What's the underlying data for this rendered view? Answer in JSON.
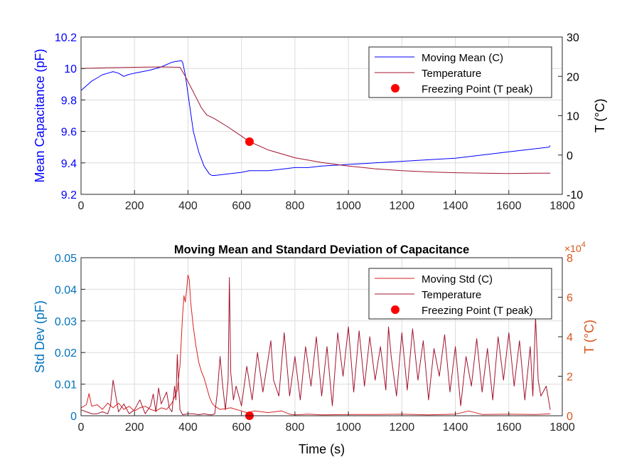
{
  "chart_data": [
    {
      "type": "line",
      "title": "",
      "xlabel": "",
      "ylabel": "Mean Capacitance (pF)",
      "y2label": "T (°C)",
      "xlim": [
        0,
        1800
      ],
      "ylim": [
        9.2,
        10.2
      ],
      "y2lim": [
        -10,
        30
      ],
      "x_ticks": [
        "0",
        "200",
        "400",
        "600",
        "800",
        "1000",
        "1200",
        "1400",
        "1600",
        "1800"
      ],
      "y_ticks": [
        "9.2",
        "9.4",
        "9.6",
        "9.8",
        "10",
        "10.2"
      ],
      "y2_ticks": [
        "-10",
        "0",
        "10",
        "20",
        "30"
      ],
      "grid": true,
      "legend_position": "top-right",
      "series": [
        {
          "name": "Moving Mean (C)",
          "axis": "left",
          "color": "#0000ff",
          "x": [
            0,
            20,
            40,
            60,
            80,
            100,
            120,
            140,
            160,
            175,
            200,
            230,
            260,
            300,
            340,
            375,
            380,
            390,
            400,
            410,
            420,
            440,
            460,
            480,
            490,
            500,
            550,
            600,
            630,
            650,
            700,
            750,
            800,
            850,
            900,
            1000,
            1100,
            1200,
            1300,
            1400,
            1500,
            1600,
            1700,
            1750,
            1755
          ],
          "values": [
            9.86,
            9.89,
            9.92,
            9.94,
            9.96,
            9.97,
            9.98,
            9.97,
            9.95,
            9.96,
            9.97,
            9.98,
            9.99,
            10.01,
            10.04,
            10.05,
            10.04,
            9.96,
            9.84,
            9.72,
            9.6,
            9.47,
            9.38,
            9.33,
            9.32,
            9.32,
            9.33,
            9.34,
            9.35,
            9.35,
            9.35,
            9.36,
            9.37,
            9.37,
            9.38,
            9.39,
            9.4,
            9.41,
            9.42,
            9.43,
            9.45,
            9.47,
            9.49,
            9.5,
            9.51
          ]
        },
        {
          "name": "Temperature",
          "axis": "right",
          "color": "#a2142f",
          "x": [
            0,
            100,
            200,
            300,
            370,
            390,
            420,
            450,
            470,
            500,
            550,
            600,
            630,
            700,
            800,
            900,
            1000,
            1100,
            1200,
            1300,
            1400,
            1500,
            1600,
            1700,
            1755
          ],
          "values": [
            22,
            22.2,
            22.3,
            22.4,
            22.3,
            20,
            16,
            12,
            10.2,
            9.2,
            7.1,
            4.8,
            3.4,
            1.3,
            -0.7,
            -1.9,
            -2.8,
            -3.5,
            -4,
            -4.3,
            -4.5,
            -4.6,
            -4.7,
            -4.6,
            -4.6
          ]
        },
        {
          "name": "Freezing Point (T peak)",
          "axis": "right",
          "marker": "o",
          "color": "#ff0000",
          "x": [
            630
          ],
          "values": [
            3.4
          ]
        }
      ]
    },
    {
      "type": "line",
      "title": "Moving Mean and Standard Deviation of Capacitance",
      "xlabel": "Time (s)",
      "ylabel": "Std Dev (pF)",
      "y2label": "T (°C)",
      "y2_exponent": "×10^4",
      "y2_exponent_base": "×10",
      "y2_exponent_power": "4",
      "xlim": [
        0,
        1800
      ],
      "ylim": [
        0,
        0.05
      ],
      "y2lim": [
        0,
        8
      ],
      "x_ticks": [
        "0",
        "200",
        "400",
        "600",
        "800",
        "1000",
        "1200",
        "1400",
        "1600",
        "1800"
      ],
      "y_ticks": [
        "0",
        "0.01",
        "0.02",
        "0.03",
        "0.04",
        "0.05"
      ],
      "y2_ticks": [
        "0",
        "2",
        "4",
        "6",
        "8"
      ],
      "grid": true,
      "legend_position": "top-right",
      "series": [
        {
          "name": "Moving Std (C)",
          "axis": "left",
          "color": "#d92020",
          "x": [
            0,
            20,
            30,
            40,
            60,
            80,
            100,
            120,
            140,
            160,
            180,
            200,
            220,
            240,
            260,
            280,
            300,
            320,
            340,
            360,
            370,
            380,
            385,
            390,
            395,
            400,
            405,
            410,
            420,
            430,
            440,
            450,
            460,
            470,
            480,
            490,
            500,
            520,
            560,
            600,
            620,
            650,
            700,
            750,
            780,
            800,
            850,
            900,
            1000,
            1100,
            1200,
            1300,
            1400,
            1450,
            1500,
            1600,
            1700,
            1755
          ],
          "values": [
            0.0025,
            0.0035,
            0.007,
            0.003,
            0.0035,
            0.002,
            0.004,
            0.0025,
            0.004,
            0.002,
            0.003,
            0.0015,
            0.0025,
            0.003,
            0.002,
            0.0015,
            0.0025,
            0.002,
            0.004,
            0.008,
            0.016,
            0.032,
            0.038,
            0.036,
            0.04,
            0.0445,
            0.043,
            0.036,
            0.028,
            0.022,
            0.017,
            0.014,
            0.012,
            0.009,
            0.006,
            0.004,
            0.003,
            0.002,
            0.0025,
            0.0015,
            0.001,
            0.0015,
            0.001,
            0.0015,
            0.0005,
            0.0003,
            0.0005,
            0.0003,
            0.0004,
            0.0004,
            0.0005,
            0.0003,
            0.0005,
            0.0015,
            0.0004,
            0.0005,
            0.0004,
            0.0006
          ]
        },
        {
          "name": "Temperature",
          "axis": "right",
          "color": "#a2142f",
          "x": [
            0,
            20,
            40,
            60,
            80,
            100,
            110,
            120,
            140,
            160,
            180,
            200,
            220,
            240,
            260,
            270,
            280,
            290,
            300,
            320,
            330,
            340,
            350,
            355,
            360,
            365,
            370,
            380,
            400,
            420,
            440,
            460,
            480,
            490,
            500,
            510,
            520,
            530,
            540,
            550,
            555,
            560,
            570,
            580,
            600,
            620,
            640,
            660,
            680,
            700,
            710,
            720,
            740,
            760,
            780,
            800,
            820,
            840,
            860,
            880,
            900,
            920,
            940,
            960,
            980,
            1000,
            1020,
            1040,
            1060,
            1080,
            1100,
            1120,
            1140,
            1150,
            1160,
            1180,
            1200,
            1220,
            1240,
            1260,
            1280,
            1300,
            1320,
            1340,
            1360,
            1380,
            1400,
            1420,
            1440,
            1460,
            1480,
            1500,
            1520,
            1540,
            1560,
            1580,
            1600,
            1620,
            1640,
            1660,
            1680,
            1690,
            1700,
            1710,
            1720,
            1740,
            1755
          ],
          "values": [
            0.3,
            0.2,
            0.1,
            0.1,
            0.2,
            0.1,
            0.5,
            1.8,
            0.2,
            0.6,
            0.1,
            0.3,
            0.8,
            0.1,
            0.5,
            1.1,
            0.2,
            1.4,
            0.6,
            1.2,
            0.4,
            0.2,
            1.5,
            0.8,
            3.1,
            1.5,
            0.3,
            0.05,
            0.1,
            0.1,
            0.05,
            0.1,
            0.05,
            0.05,
            0.1,
            1.2,
            3.0,
            1.5,
            0.3,
            1.8,
            7.0,
            2.2,
            0.8,
            1.5,
            0.5,
            2.5,
            0.8,
            3.2,
            1.2,
            2.9,
            3.8,
            1.8,
            1.0,
            4.2,
            1.0,
            3.0,
            0.8,
            3.5,
            1.5,
            4.0,
            1.0,
            3.5,
            0.5,
            4.2,
            2.0,
            4.5,
            1.2,
            4.3,
            1.5,
            4.0,
            1.8,
            3.5,
            1.3,
            4.5,
            3.0,
            1.0,
            4.2,
            1.3,
            4.4,
            1.8,
            3.8,
            0.8,
            3.4,
            2.0,
            4.1,
            1.2,
            3.5,
            0.5,
            3.0,
            1.5,
            3.9,
            1.2,
            3.4,
            0.8,
            4.0,
            1.8,
            4.2,
            1.5,
            3.8,
            0.8,
            3.5,
            1.0,
            5.0,
            1.8,
            1.0,
            1.5,
            0.3
          ]
        },
        {
          "name": "Freezing Point (T peak)",
          "axis": "left",
          "marker": "o",
          "color": "#ff0000",
          "x": [
            630
          ],
          "values": [
            0
          ]
        }
      ]
    }
  ]
}
